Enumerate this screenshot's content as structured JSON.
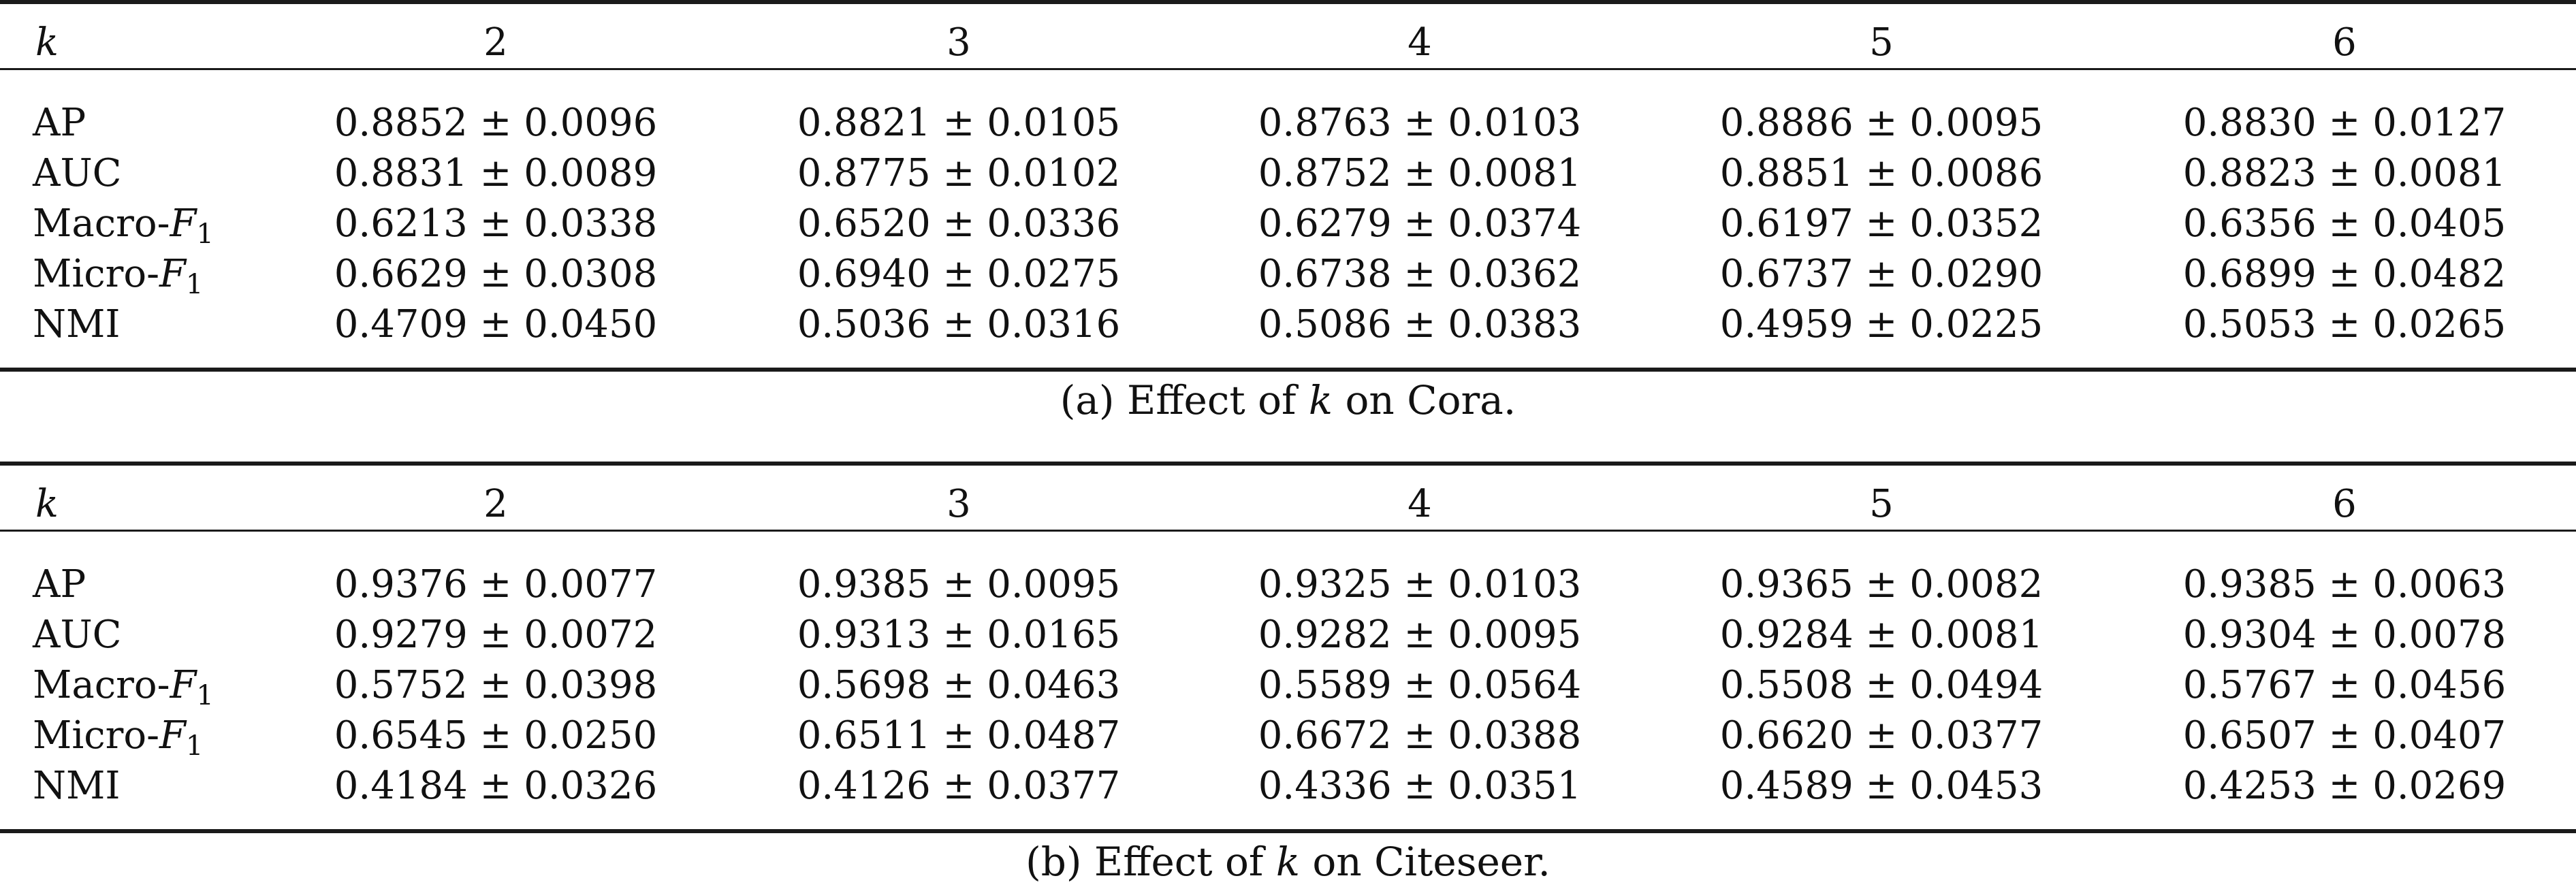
{
  "tables": [
    {
      "caption_prefix": "(a) Effect of",
      "caption_var": "k",
      "caption_suffix": "on Cora.",
      "header": {
        "label": "k",
        "cols": [
          "2",
          "3",
          "4",
          "5",
          "6"
        ]
      },
      "rows": [
        {
          "label": "AP",
          "values": [
            "0.8852 ± 0.0096",
            "0.8821 ± 0.0105",
            "0.8763 ± 0.0103",
            "0.8886 ± 0.0095",
            "0.8830 ± 0.0127"
          ]
        },
        {
          "label": "AUC",
          "values": [
            "0.8831 ± 0.0089",
            "0.8775 ± 0.0102",
            "0.8752 ± 0.0081",
            "0.8851 ± 0.0086",
            "0.8823 ± 0.0081"
          ]
        },
        {
          "label_prefix": "Macro-",
          "label_var": "F",
          "label_sub": "1",
          "values": [
            "0.6213 ± 0.0338",
            "0.6520 ± 0.0336",
            "0.6279 ± 0.0374",
            "0.6197 ± 0.0352",
            "0.6356 ± 0.0405"
          ]
        },
        {
          "label_prefix": "Micro-",
          "label_var": "F",
          "label_sub": "1",
          "values": [
            "0.6629 ± 0.0308",
            "0.6940 ± 0.0275",
            "0.6738 ± 0.0362",
            "0.6737 ± 0.0290",
            "0.6899 ± 0.0482"
          ]
        },
        {
          "label": "NMI",
          "values": [
            "0.4709 ± 0.0450",
            "0.5036 ± 0.0316",
            "0.5086 ± 0.0383",
            "0.4959 ± 0.0225",
            "0.5053 ± 0.0265"
          ]
        }
      ]
    },
    {
      "caption_prefix": "(b) Effect of",
      "caption_var": "k",
      "caption_suffix": "on Citeseer.",
      "header": {
        "label": "k",
        "cols": [
          "2",
          "3",
          "4",
          "5",
          "6"
        ]
      },
      "rows": [
        {
          "label": "AP",
          "values": [
            "0.9376 ± 0.0077",
            "0.9385 ± 0.0095",
            "0.9325 ± 0.0103",
            "0.9365 ± 0.0082",
            "0.9385 ± 0.0063"
          ]
        },
        {
          "label": "AUC",
          "values": [
            "0.9279 ± 0.0072",
            "0.9313 ± 0.0165",
            "0.9282 ± 0.0095",
            "0.9284 ± 0.0081",
            "0.9304 ± 0.0078"
          ]
        },
        {
          "label_prefix": "Macro-",
          "label_var": "F",
          "label_sub": "1",
          "values": [
            "0.5752 ± 0.0398",
            "0.5698 ± 0.0463",
            "0.5589 ± 0.0564",
            "0.5508 ± 0.0494",
            "0.5767 ± 0.0456"
          ]
        },
        {
          "label_prefix": "Micro-",
          "label_var": "F",
          "label_sub": "1",
          "values": [
            "0.6545 ± 0.0250",
            "0.6511 ± 0.0487",
            "0.6672 ± 0.0388",
            "0.6620 ± 0.0377",
            "0.6507 ± 0.0407"
          ]
        },
        {
          "label": "NMI",
          "values": [
            "0.4184 ± 0.0326",
            "0.4126 ± 0.0377",
            "0.4336 ± 0.0351",
            "0.4589 ± 0.0453",
            "0.4253 ± 0.0269"
          ]
        }
      ]
    }
  ]
}
